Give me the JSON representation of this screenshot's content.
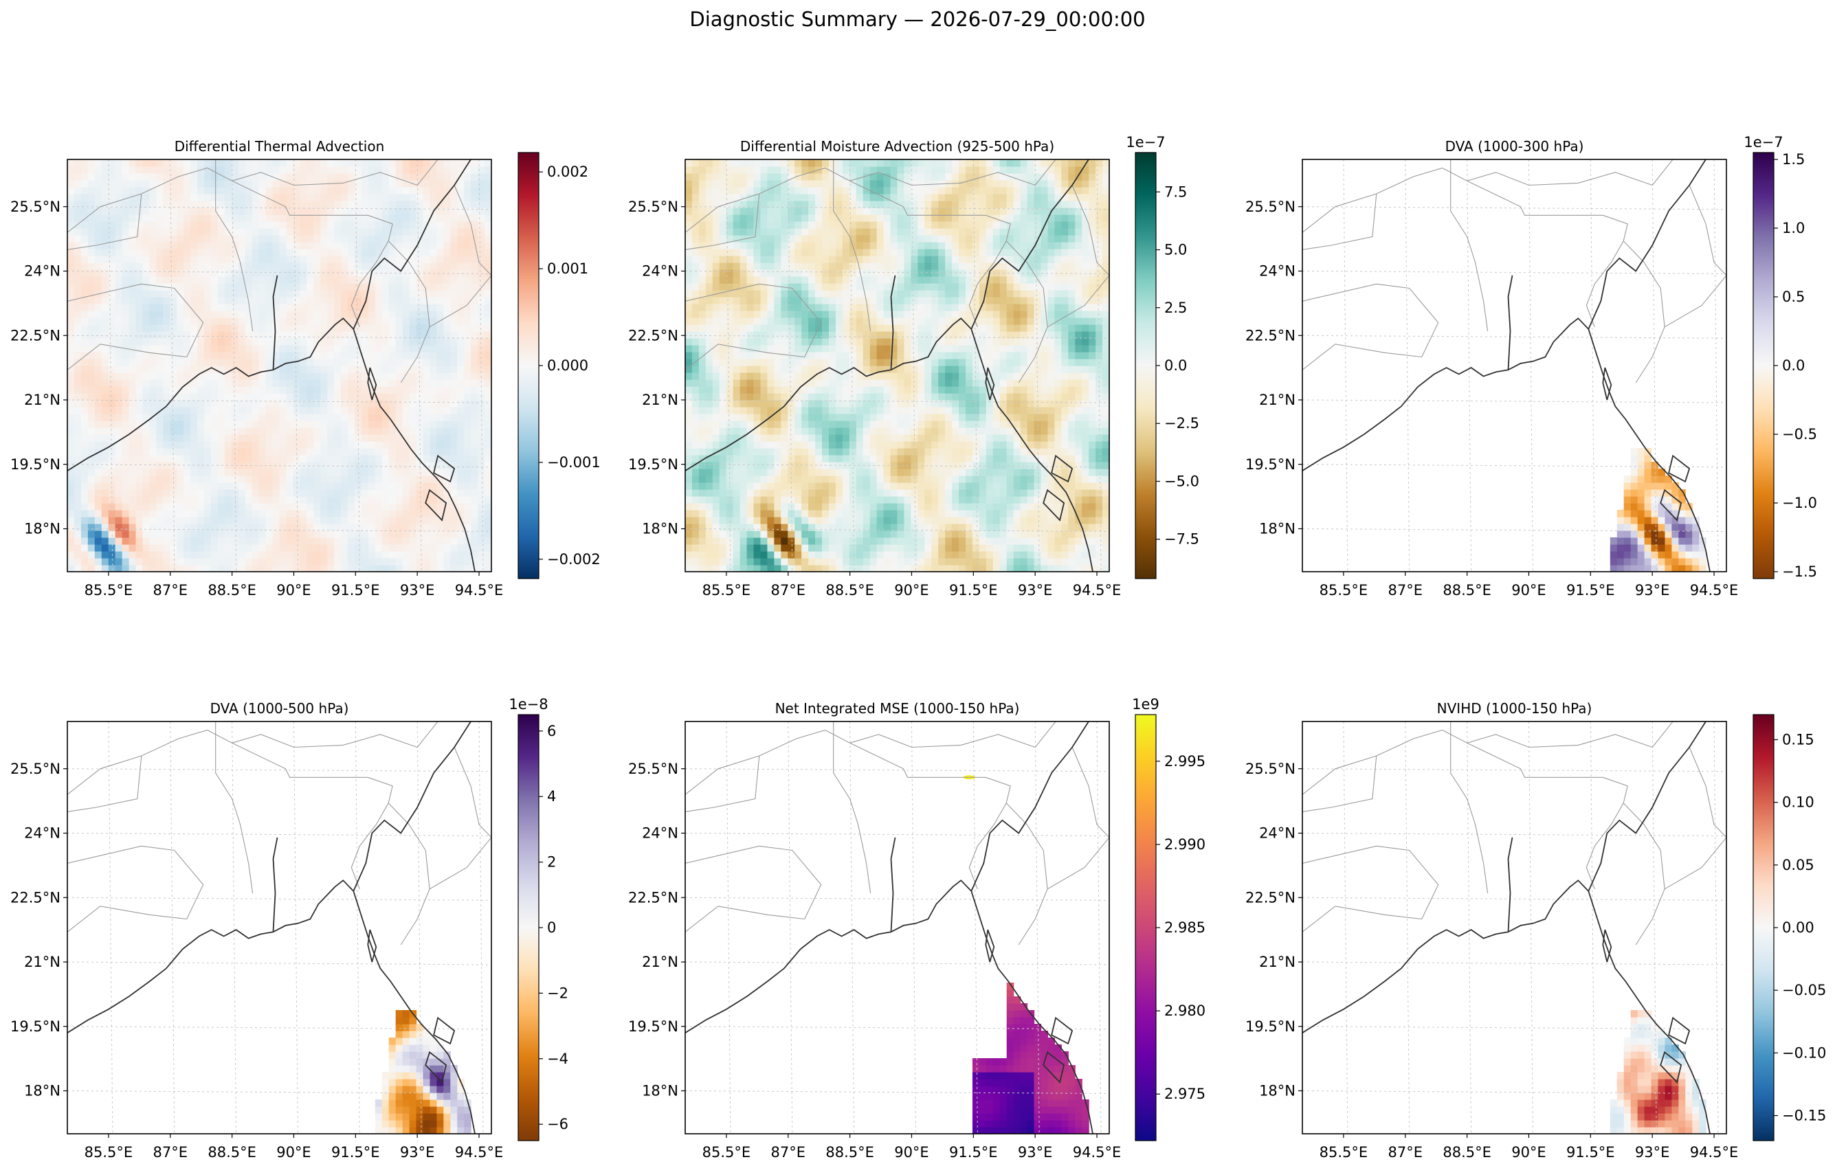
{
  "figure": {
    "suptitle": "Diagnostic Summary — 2026-07-29_00:00:00"
  },
  "chart_data": [
    {
      "type": "heatmap",
      "title": "Differential Thermal Advection",
      "xticks": [
        "85.5°E",
        "87°E",
        "88.5°E",
        "90°E",
        "91.5°E",
        "93°E",
        "94.5°E"
      ],
      "yticks": [
        "25.5°N",
        "24°N",
        "22.5°N",
        "21°N",
        "19.5°N",
        "18°N"
      ],
      "xlim": [
        84.5,
        94.8
      ],
      "ylim": [
        17.0,
        26.6
      ],
      "colorbar": {
        "cmap": "RdBu_r",
        "vmin": -0.0022,
        "vmax": 0.0022,
        "ticks": [
          -0.002,
          -0.001,
          0.0,
          0.001,
          0.002
        ],
        "ticklabels": [
          "−0.002",
          "−0.001",
          "0.000",
          "0.001",
          "0.002"
        ],
        "offset": ""
      },
      "field": {
        "coverage": "full",
        "amplitude": 0.2,
        "hotspot_lon": 85.5,
        "hotspot_lat": 17.7,
        "hotspot_amp": 0.7
      }
    },
    {
      "type": "heatmap",
      "title": "Differential Moisture Advection (925-500 hPa)",
      "xticks": [
        "85.5°E",
        "87°E",
        "88.5°E",
        "90°E",
        "91.5°E",
        "93°E",
        "94.5°E"
      ],
      "yticks": [
        "25.5°N",
        "24°N",
        "22.5°N",
        "21°N",
        "19.5°N",
        "18°N"
      ],
      "xlim": [
        84.5,
        94.8
      ],
      "ylim": [
        17.0,
        26.6
      ],
      "colorbar": {
        "cmap": "BrBG",
        "vmin": -9.2,
        "vmax": 9.2,
        "ticks": [
          -7.5,
          -5.0,
          -2.5,
          0.0,
          2.5,
          5.0,
          7.5
        ],
        "ticklabels": [
          "−7.5",
          "−5.0",
          "−2.5",
          "0.0",
          "2.5",
          "5.0",
          "7.5"
        ],
        "offset": "1e−7"
      },
      "field": {
        "coverage": "full",
        "amplitude": 0.45,
        "hotspot_lon": 87.0,
        "hotspot_lat": 17.8,
        "hotspot_amp": 0.9
      }
    },
    {
      "type": "heatmap",
      "title": "DVA (1000-300 hPa)",
      "xticks": [
        "85.5°E",
        "87°E",
        "88.5°E",
        "90°E",
        "91.5°E",
        "93°E",
        "94.5°E"
      ],
      "yticks": [
        "25.5°N",
        "24°N",
        "22.5°N",
        "21°N",
        "19.5°N",
        "18°N"
      ],
      "xlim": [
        84.5,
        94.8
      ],
      "ylim": [
        17.0,
        26.6
      ],
      "colorbar": {
        "cmap": "PuOr",
        "vmin": -1.55,
        "vmax": 1.55,
        "ticks": [
          -1.5,
          -1.0,
          -0.5,
          0.0,
          0.5,
          1.0,
          1.5
        ],
        "ticklabels": [
          "−1.5",
          "−1.0",
          "−0.5",
          "0.0",
          "0.5",
          "1.0",
          "1.5"
        ],
        "offset": "1e−7"
      },
      "field": {
        "coverage": "southeast",
        "amplitude": 0.6,
        "hotspot_lon": 93.2,
        "hotspot_lat": 17.9,
        "hotspot_amp": 0.9
      }
    },
    {
      "type": "heatmap",
      "title": "DVA (1000-500 hPa)",
      "xticks": [
        "85.5°E",
        "87°E",
        "88.5°E",
        "90°E",
        "91.5°E",
        "93°E",
        "94.5°E"
      ],
      "yticks": [
        "25.5°N",
        "24°N",
        "22.5°N",
        "21°N",
        "19.5°N",
        "18°N"
      ],
      "xlim": [
        84.5,
        94.8
      ],
      "ylim": [
        17.0,
        26.6
      ],
      "colorbar": {
        "cmap": "PuOr",
        "vmin": -6.5,
        "vmax": 6.5,
        "ticks": [
          -6,
          -4,
          -2,
          0,
          2,
          4,
          6
        ],
        "ticklabels": [
          "−6",
          "−4",
          "−2",
          "0",
          "2",
          "4",
          "6"
        ],
        "offset": "1e−8"
      },
      "field": {
        "coverage": "southeast",
        "amplitude": 0.8,
        "hotspot_lon": 93.5,
        "hotspot_lat": 18.0,
        "hotspot_amp": 0.5
      }
    },
    {
      "type": "heatmap",
      "title": "Net Integrated MSE (1000-150 hPa)",
      "xticks": [
        "85.5°E",
        "87°E",
        "88.5°E",
        "90°E",
        "91.5°E",
        "93°E",
        "94.5°E"
      ],
      "yticks": [
        "25.5°N",
        "24°N",
        "22.5°N",
        "21°N",
        "19.5°N",
        "18°N"
      ],
      "xlim": [
        84.5,
        94.8
      ],
      "ylim": [
        17.0,
        26.6
      ],
      "colorbar": {
        "cmap": "plasma",
        "vmin": 2.9722,
        "vmax": 2.9978,
        "ticks": [
          2.975,
          2.98,
          2.985,
          2.99,
          2.995
        ],
        "ticklabels": [
          "2.975",
          "2.980",
          "2.985",
          "2.990",
          "2.995"
        ],
        "offset": "1e9"
      },
      "field": {
        "coverage": "southeast-sequential",
        "amplitude": 0.5,
        "hotspot_lon": 93.0,
        "hotspot_lat": 19.5,
        "hotspot_amp": 0.4
      }
    },
    {
      "type": "heatmap",
      "title": "NVIHD (1000-150 hPa)",
      "xticks": [
        "85.5°E",
        "87°E",
        "88.5°E",
        "90°E",
        "91.5°E",
        "93°E",
        "94.5°E"
      ],
      "yticks": [
        "25.5°N",
        "24°N",
        "22.5°N",
        "21°N",
        "19.5°N",
        "18°N"
      ],
      "xlim": [
        84.5,
        94.8
      ],
      "ylim": [
        17.0,
        26.6
      ],
      "colorbar": {
        "cmap": "RdBu_r",
        "vmin": -0.17,
        "vmax": 0.17,
        "ticks": [
          -0.15,
          -0.1,
          -0.05,
          0.0,
          0.05,
          0.1,
          0.15
        ],
        "ticklabels": [
          "−0.15",
          "−0.10",
          "−0.05",
          "0.00",
          "0.05",
          "0.10",
          "0.15"
        ],
        "offset": ""
      },
      "field": {
        "coverage": "southeast",
        "amplitude": 0.85,
        "hotspot_lon": 93.0,
        "hotspot_lat": 18.0,
        "hotspot_amp": 0.4
      }
    }
  ]
}
